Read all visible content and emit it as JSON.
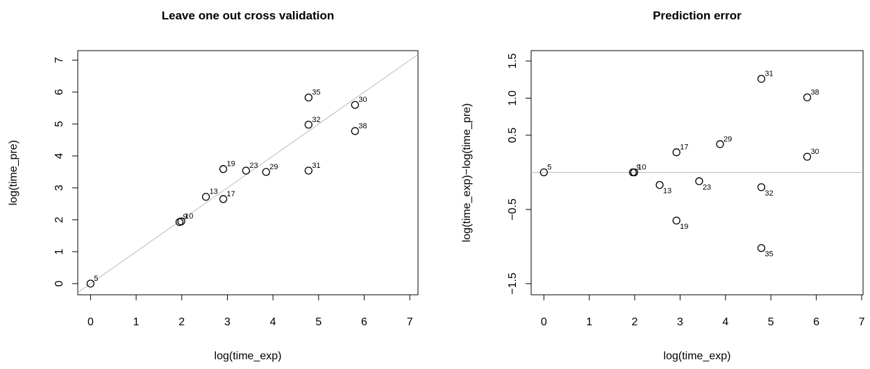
{
  "chart_data": [
    {
      "type": "scatter",
      "title": "Leave one out cross validation",
      "xlabel": "log(time_exp)",
      "ylabel": "log(time_pre)",
      "x": [
        0,
        1.95,
        1.99,
        2.53,
        2.91,
        2.91,
        3.41,
        3.85,
        4.78,
        4.78,
        4.78,
        5.8,
        5.8
      ],
      "y": [
        0,
        1.93,
        1.95,
        2.72,
        3.59,
        2.65,
        3.54,
        3.5,
        5.83,
        4.98,
        3.54,
        5.6,
        4.78
      ],
      "point_labels": [
        "5",
        "9",
        "10",
        "13",
        "19",
        "17",
        "23",
        "29",
        "35",
        "32",
        "31",
        "30",
        "38"
      ],
      "xlim": [
        -0.28,
        7.18
      ],
      "ylim": [
        -0.35,
        7.3
      ],
      "xticks": [
        0,
        1,
        2,
        3,
        4,
        5,
        6,
        7
      ],
      "yticks": [
        0,
        1,
        2,
        3,
        4,
        5,
        6,
        7
      ],
      "reference_line": "identity",
      "color": "#000000",
      "line_color": "#bbbbbb"
    },
    {
      "type": "scatter",
      "title": "Prediction error",
      "xlabel": "log(time_exp)",
      "ylabel": "log(time_exp)−log(time_pre)",
      "x": [
        0,
        1.96,
        1.99,
        2.55,
        2.92,
        2.92,
        3.42,
        3.88,
        4.79,
        4.79,
        4.79,
        5.8,
        5.8
      ],
      "y": [
        0,
        0,
        0,
        -0.17,
        0.27,
        -0.65,
        -0.12,
        0.38,
        1.26,
        -0.2,
        -1.02,
        1.01,
        0.21
      ],
      "point_labels": [
        "5",
        "9",
        "10",
        "13",
        "17",
        "19",
        "23",
        "29",
        "31",
        "32",
        "35",
        "38",
        "30"
      ],
      "xlim": [
        -0.28,
        7.03
      ],
      "ylim": [
        -1.65,
        1.64
      ],
      "xticks": [
        0,
        1,
        2,
        3,
        4,
        5,
        6,
        7
      ],
      "yticks": [
        {
          "value": -1.5,
          "label": "−1.5"
        },
        {
          "value": -0.5,
          "label": "−0.5"
        },
        0.5,
        {
          "value": 1,
          "label": "1.0"
        },
        1.5
      ],
      "reference_line": "zero",
      "color": "#000000",
      "line_color": "#bbbbbb"
    }
  ]
}
